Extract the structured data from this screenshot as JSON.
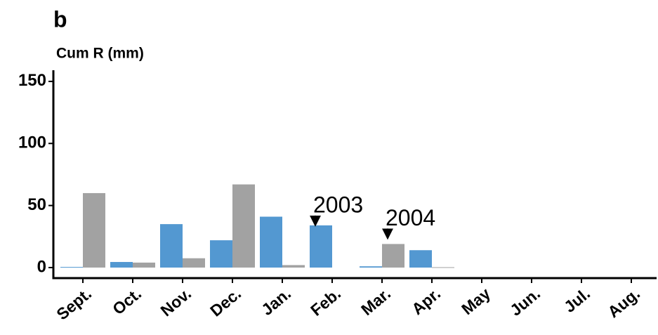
{
  "chart_data": {
    "type": "bar",
    "panel_label": "b",
    "y_label": "Cum R (mm)",
    "categories": [
      "Sept.",
      "Oct.",
      "Nov.",
      "Dec.",
      "Jan.",
      "Feb.",
      "Mar.",
      "Apr.",
      "May",
      "Jun.",
      "Jul.",
      "Aug."
    ],
    "series": [
      {
        "name": "2003",
        "color": "#5398d1",
        "values": [
          0.5,
          4.5,
          35,
          22,
          41,
          34,
          1,
          14,
          null,
          null,
          null,
          null
        ]
      },
      {
        "name": "2004",
        "color": "#a2a2a2",
        "values": [
          60,
          4,
          7.5,
          67,
          2,
          null,
          19,
          0.3,
          null,
          null,
          null,
          null
        ]
      }
    ],
    "ylim": [
      -8.5,
      159
    ],
    "yticks": [
      0,
      50,
      100,
      150
    ],
    "grid": false
  }
}
